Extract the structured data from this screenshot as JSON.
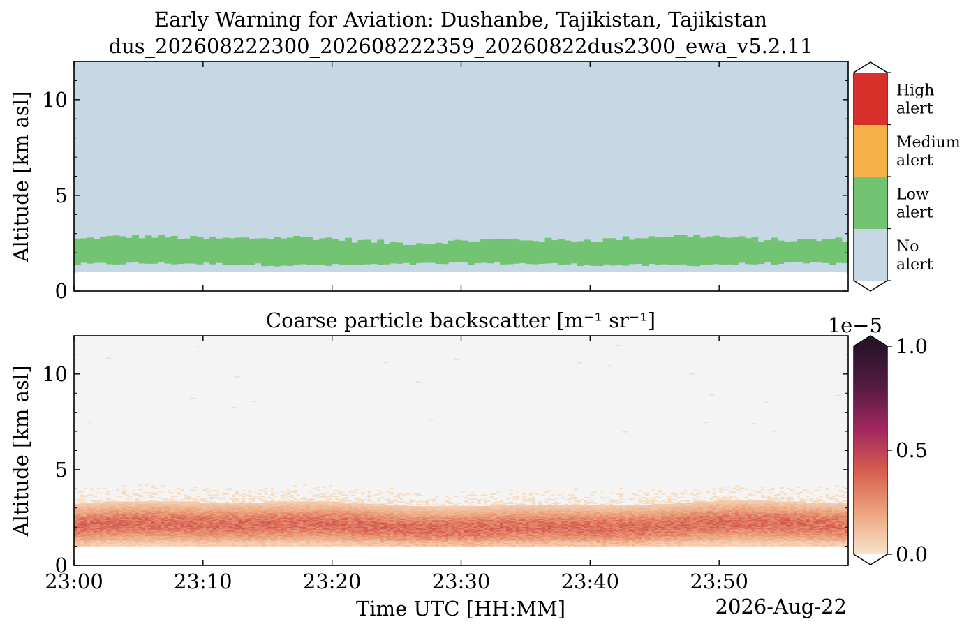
{
  "header": {
    "title_line1": "Early Warning for Aviation: Dushanbe, Tajikistan, Tajikistan",
    "title_line2": "dus_202608222300_202608222359_20260822dus2300_ewa_v5.2.11"
  },
  "chart_data": [
    {
      "type": "heatmap",
      "name": "alert-panel",
      "ylabel": "Altitude [km asl]",
      "ylim": [
        0,
        12
      ],
      "yticks": [
        0,
        5,
        10
      ],
      "ytick_labels": [
        "0",
        "5",
        "10"
      ],
      "xlim": [
        0,
        60
      ],
      "xticks": [
        0,
        10,
        20,
        30,
        40,
        50
      ],
      "colorbar": {
        "categories": [
          {
            "label_line1": "No",
            "label_line2": "alert",
            "color": "#c6d8e4"
          },
          {
            "label_line1": "Low",
            "label_line2": "alert",
            "color": "#72c472"
          },
          {
            "label_line1": "Medium",
            "label_line2": "alert",
            "color": "#f6b248"
          },
          {
            "label_line1": "High",
            "label_line2": "alert",
            "color": "#d7302a"
          }
        ]
      },
      "data_summary": {
        "no_data_below_km": 1.0,
        "low_alert_layer_km": [
          1.4,
          2.7
        ],
        "above_layer": "No alert"
      }
    },
    {
      "type": "heatmap",
      "name": "backscatter-panel",
      "title": "Coarse particle backscatter [m⁻¹ sr⁻¹]",
      "ylabel": "Altitude [km asl]",
      "xlabel": "Time UTC [HH:MM]",
      "date_label": "2026-Aug-22",
      "ylim": [
        0,
        12
      ],
      "yticks": [
        0,
        5,
        10
      ],
      "ytick_labels": [
        "0",
        "5",
        "10"
      ],
      "xlim": [
        0,
        60
      ],
      "xticks": [
        0,
        10,
        20,
        30,
        40,
        50
      ],
      "xtick_labels": [
        "23:00",
        "23:10",
        "23:20",
        "23:30",
        "23:40",
        "23:50"
      ],
      "colorbar": {
        "scale_label": "1e−5",
        "ticks": [
          0.0,
          0.5,
          1.0
        ],
        "tick_labels": [
          "0.0",
          "0.5",
          "1.0"
        ],
        "vmin": 0.0,
        "vmax": 1.0,
        "colors": [
          "#f7e3cb",
          "#eda47e",
          "#d75d4f",
          "#a1285d",
          "#561b44",
          "#2b1329"
        ]
      },
      "data_summary": {
        "no_data_below_km": 1.0,
        "peak_layer_km": [
          1.3,
          2.8
        ],
        "peak_value": 0.35,
        "background_color": "#f4f4f4"
      }
    }
  ]
}
